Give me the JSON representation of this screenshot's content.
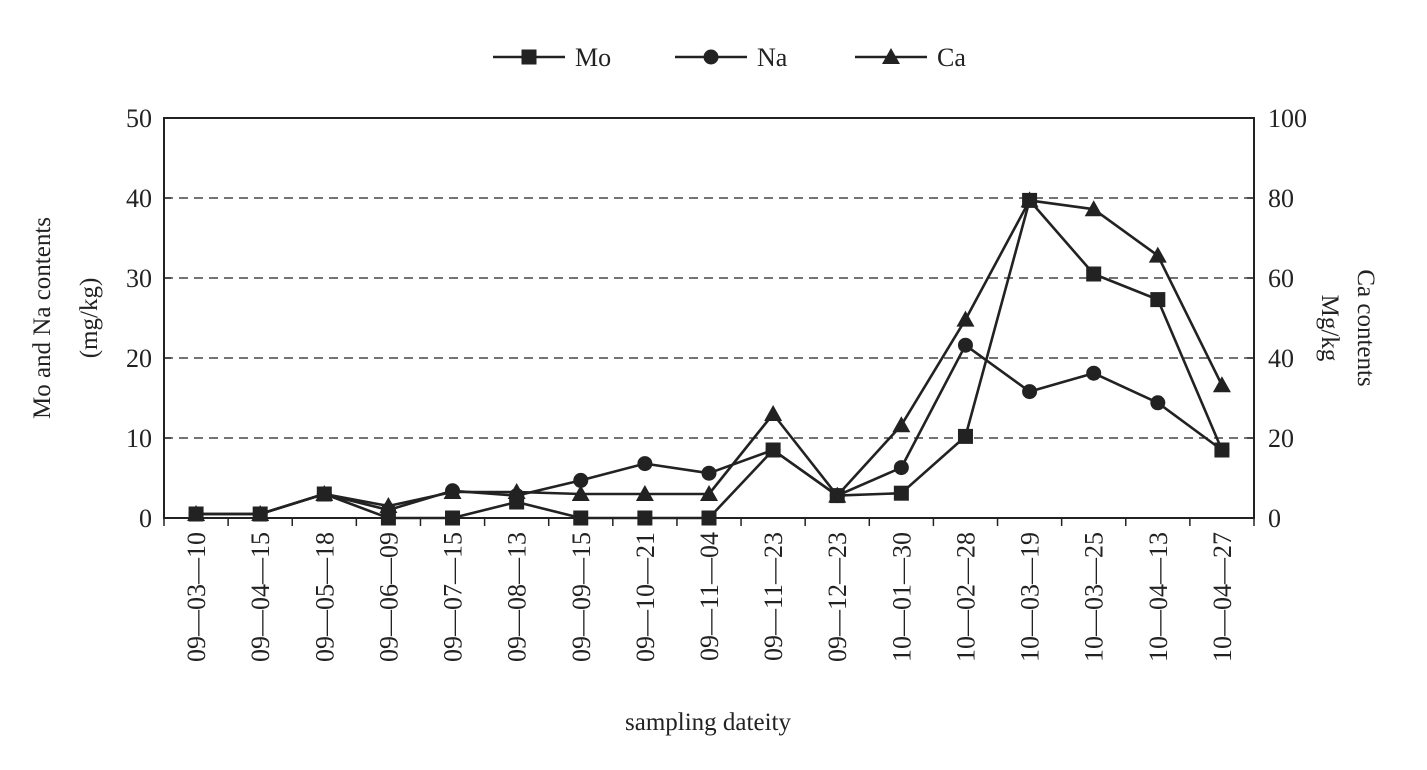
{
  "chart_data": {
    "type": "line",
    "xlabel": "sampling dateity",
    "ylabel_left": [
      "Mo and Na contents",
      "(mg/kg)"
    ],
    "ylabel_right": [
      "Ca contents",
      "Mg/kg"
    ],
    "ylim_left": [
      0,
      50
    ],
    "ylim_right": [
      0,
      100
    ],
    "yticks_left": [
      "0",
      "10",
      "20",
      "30",
      "40",
      "50"
    ],
    "yticks_right": [
      "0",
      "20",
      "40",
      "60",
      "80",
      "100"
    ],
    "grid": "horizontal dashed",
    "legend_position": "top",
    "categories": [
      "09—03—10",
      "09—04—15",
      "09—05—18",
      "09—06—09",
      "09—07—15",
      "09—08—13",
      "09—09—15",
      "09—10—21",
      "09—11—04",
      "09—11—23",
      "09—12—23",
      "10—01—30",
      "10—02—28",
      "10—03—19",
      "10—03—25",
      "10—04—13",
      "10—04—27"
    ],
    "series": [
      {
        "name": "Mo",
        "axis": "left",
        "marker": "square",
        "values": [
          0.5,
          0.5,
          3.0,
          0.0,
          0.0,
          2.0,
          0.0,
          0.0,
          0.0,
          8.5,
          2.8,
          3.1,
          10.2,
          39.7,
          30.5,
          27.3,
          8.5
        ]
      },
      {
        "name": "Na",
        "axis": "left",
        "marker": "circle",
        "values": [
          0.5,
          0.5,
          3.0,
          1.0,
          3.4,
          2.8,
          4.7,
          6.8,
          5.6,
          8.5,
          2.8,
          6.3,
          21.6,
          15.8,
          18.1,
          14.4,
          8.5
        ]
      },
      {
        "name": "Ca",
        "axis": "right",
        "marker": "triangle",
        "values": [
          1.0,
          1.0,
          6.0,
          3.0,
          6.5,
          6.5,
          6.0,
          6.0,
          6.0,
          26.0,
          5.6,
          23.2,
          49.6,
          79.4,
          77.2,
          65.6,
          33.2
        ]
      }
    ]
  }
}
